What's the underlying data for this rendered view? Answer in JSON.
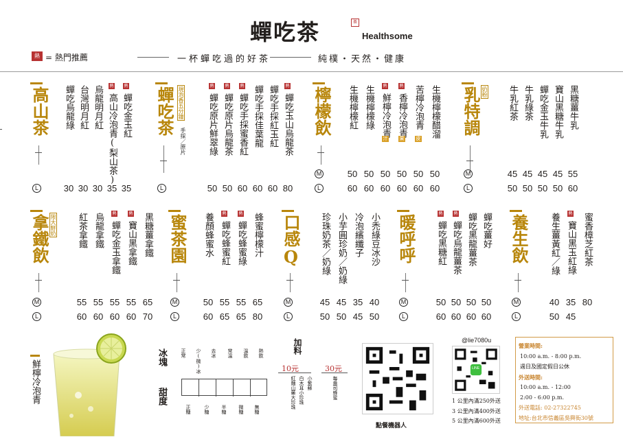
{
  "header": {
    "logo": "蟬吃茶",
    "seal": "茶",
    "brand_en": "Healthsome",
    "hot_icon": "熱",
    "hot_legend": "= 熱門推薦",
    "slogan": "一杯蟬吃過的好茶",
    "slogan2": "純樸・天然・健康"
  },
  "size_labels": {
    "m": "M",
    "l": "L"
  },
  "sections": [
    {
      "id": "gaoshan",
      "title": "高山茶",
      "items": [
        "蟬吃烏龍綠",
        "台灣明月紅",
        "烏龍明月紅",
        "高山冷泡青(梨山茶)",
        "蟬吃金玉紅"
      ],
      "hot": [
        false,
        false,
        false,
        true,
        true
      ],
      "l": [
        "30",
        "30",
        "30",
        "35",
        "35"
      ]
    },
    {
      "id": "chanchi",
      "title": "蟬吃茶",
      "tag": "現泡香五分鐘",
      "sub": "手採／原片",
      "items": [
        "蟬吃原片鮮翠綠",
        "蟬吃原片烏龍茶",
        "蟬吃手採蜜香紅",
        "蟬吃手採佳葉龍",
        "蟬吃手採紅玉紅",
        "蟬吃玉山烏龍茶"
      ],
      "hot": [
        true,
        true,
        true,
        false,
        false,
        true
      ],
      "l": [
        "50",
        "50",
        "60",
        "60",
        "60",
        "80"
      ]
    },
    {
      "id": "ningmeng",
      "title": "檸檬飲",
      "items": [
        "生機檸檬紅",
        "生機檸檬綠",
        "鮮檸冷泡青",
        "香檸冷泡青",
        "苦檸冷泡青",
        "生機檸檬醋溜"
      ],
      "hot": [
        false,
        false,
        true,
        true,
        false,
        false
      ],
      "boxes": [
        "",
        "",
        "汁",
        "果",
        "皮",
        ""
      ],
      "m": [
        "50",
        "50",
        "50",
        "50",
        "50",
        "50"
      ],
      "l": [
        "60",
        "60",
        "60",
        "60",
        "60",
        "60"
      ]
    },
    {
      "id": "rute",
      "title": "乳特調",
      "tag": "奶粉",
      "items": [
        "牛乳紅茶",
        "牛乳綠茶",
        "蟬吃金玉牛乳",
        "寶山黑糖牛乳",
        "黑糖薑牛乳"
      ],
      "m": [
        "45",
        "45",
        "45",
        "45",
        "55"
      ],
      "l": [
        "50",
        "50",
        "50",
        "50",
        "60"
      ]
    },
    {
      "id": "natie",
      "title": "拿鐵飲",
      "tag": "限大鮮奶",
      "items": [
        "紅茶拿鐵",
        "烏龍拿鐵",
        "蟬吃金玉拿鐵",
        "寶山黑拿鐵",
        "黑糖薑拿鐵"
      ],
      "hot": [
        false,
        false,
        true,
        true,
        false
      ],
      "m": [
        "55",
        "55",
        "55",
        "55",
        "65"
      ],
      "l": [
        "60",
        "60",
        "60",
        "60",
        "70"
      ]
    },
    {
      "id": "michayuan",
      "title": "蜜茶園",
      "items": [
        "養顏蜂蜜水",
        "蟬吃蜂蜜紅",
        "蟬吃蜂蜜綠",
        "蜂蜜檸檬汁"
      ],
      "hot": [
        false,
        true,
        true,
        false
      ],
      "m": [
        "50",
        "55",
        "55",
        "65"
      ],
      "l": [
        "60",
        "65",
        "65",
        "80"
      ]
    },
    {
      "id": "kougan",
      "title": "口感Q",
      "items": [
        "珍珠奶茶／奶綠",
        "小芋圓珍奶／奶綠",
        "冷泡繽纖子",
        "小禿綠豆冰沙"
      ],
      "m": [
        "45",
        "45",
        "35",
        "40"
      ],
      "l": [
        "50",
        "50",
        "45",
        "50"
      ]
    },
    {
      "id": "nuanhuhu",
      "title": "暖呼呼",
      "items": [
        "蟬吃黑糖紅",
        "蟬吃烏龍薑茶",
        "蟬吃黑龍薑茶",
        "蟬吃薑好"
      ],
      "hot": [
        true,
        true,
        false,
        false
      ],
      "m": [
        "50",
        "50",
        "50",
        "50"
      ],
      "l": [
        "60",
        "60",
        "60",
        "60"
      ]
    },
    {
      "id": "yangsheng",
      "title": "養生飲",
      "items": [
        "養生薑黃紅／綠",
        "寶山黑玉紅綠",
        "蜜香樟芝紅茶"
      ],
      "hot": [
        false,
        true,
        false
      ],
      "m": [
        "40",
        "35",
        "80"
      ],
      "l": [
        "50",
        "45",
        ""
      ]
    }
  ],
  "promo": {
    "title": "鮮檸冷泡青"
  },
  "ice": {
    "label": "冰塊",
    "options": [
      "正常",
      "少(微)冰",
      "去冰",
      "常溫",
      "溫飲",
      "熱飲"
    ]
  },
  "sugar": {
    "label": "甜度",
    "options": [
      "正糖",
      "少糖",
      "半糖",
      "微糖",
      "無糖"
    ]
  },
  "addon": {
    "label": "加料",
    "p1": "10元",
    "p2": "30元",
    "i1": "小紫蘇",
    "i2": "白木耳小珍珠",
    "i3": "紅麵山藥大珍珠",
    "i4": "每盎司蜂蜜"
  },
  "order_qr_caption": "點餐機器人",
  "line": {
    "id": "@lie7080u",
    "badge": "LINE"
  },
  "delivery": [
    "1 公里內滿250外送",
    "3 公里內滿400外送",
    "5 公里內滿600外送"
  ],
  "hours": {
    "label1": "營業時間:",
    "t1": "10:00 a.m. - 8:00 p.m.",
    "t1b": "週日及國定假日公休",
    "label2": "外送時間:",
    "t2": "10:00 a.m. - 12:00",
    "t3": "2:00 - 6:00 p.m.",
    "phone": "外送電話: 02-27322745",
    "addr": "地址:台北市信義區吳興街30號"
  }
}
